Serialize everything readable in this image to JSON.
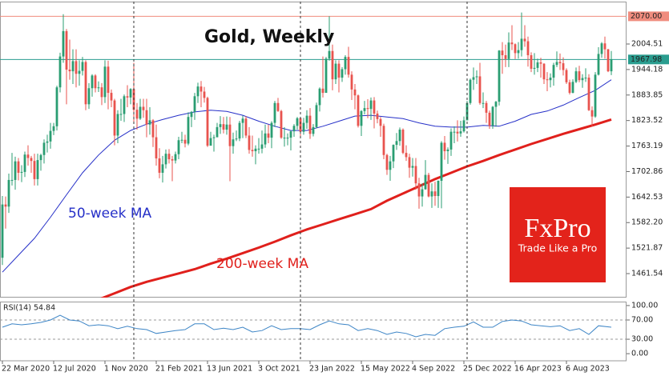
{
  "chart_data": [
    {
      "type": "candlestick",
      "title": "Gold, Weekly",
      "up_color": "#2a9d72",
      "down_color": "#e8534e",
      "xlim": [
        -0.75,
        194.75
      ],
      "xticks": [
        {
          "value": 0,
          "label": "22 Mar 2020"
        },
        {
          "value": 16,
          "label": "12 Jul 2020"
        },
        {
          "value": 32,
          "label": "1 Nov 2020"
        },
        {
          "value": 48,
          "label": "21 Feb 2021"
        },
        {
          "value": 64,
          "label": "13 Jun 2021"
        },
        {
          "value": 80,
          "label": "3 Oct 2021"
        },
        {
          "value": 96,
          "label": "23 Jan 2022"
        },
        {
          "value": 112,
          "label": "15 May 2022"
        },
        {
          "value": 128,
          "label": "4 Sep 2022"
        },
        {
          "value": 144,
          "label": "25 Dec 2022"
        },
        {
          "value": 160,
          "label": "16 Apr 2023"
        },
        {
          "value": 176,
          "label": "6 Aug 2023"
        }
      ],
      "year_lines": [
        41,
        93,
        145
      ],
      "ylim": [
        1404.8,
        2104.8
      ],
      "yticks": [
        2004.51,
        1944.18,
        1883.85,
        1823.52,
        1763.19,
        1702.86,
        1642.53,
        {
          "value": 1582.2,
          "label": "1582.20"
        },
        1521.87,
        1461.54
      ],
      "hlines": [
        {
          "y": {
            "value": 2070,
            "label": "2070.00"
          },
          "color": "#f08c7e"
        },
        {
          "y": 1967.98,
          "color": "#2a9d8f"
        }
      ],
      "open": [
        1499,
        1625,
        1620,
        1683,
        1683,
        1727,
        1700,
        1702,
        1743,
        1735,
        1728,
        1685,
        1730,
        1742,
        1771,
        1774,
        1799,
        1810,
        1902,
        1975,
        2035,
        1944,
        1940,
        1964,
        1934,
        1941,
        1962,
        1862,
        1900,
        1930,
        1900,
        1902,
        1879,
        1951,
        1889,
        1871,
        1788,
        1839,
        1839,
        1881,
        1878,
        1898,
        1849,
        1828,
        1856,
        1848,
        1814,
        1824,
        1784,
        1734,
        1700,
        1720,
        1745,
        1732,
        1729,
        1744,
        1777,
        1778,
        1769,
        1832,
        1844,
        1881,
        1904,
        1892,
        1877,
        1764,
        1782,
        1784,
        1808,
        1815,
        1802,
        1814,
        1763,
        1779,
        1781,
        1818,
        1828,
        1788,
        1754,
        1751,
        1757,
        1757,
        1767,
        1793,
        1783,
        1818,
        1865,
        1846,
        1783,
        1783,
        1783,
        1798,
        1811,
        1829,
        1797,
        1818,
        1835,
        1792,
        1808,
        1860,
        1899,
        1889,
        1970,
        1988,
        1921,
        1958,
        1925,
        1945,
        1974,
        1932,
        1897,
        1883,
        1811,
        1846,
        1853,
        1851,
        1871,
        1840,
        1827,
        1811,
        1742,
        1707,
        1727,
        1766,
        1775,
        1802,
        1747,
        1737,
        1712,
        1716,
        1675,
        1644,
        1661,
        1695,
        1644,
        1656,
        1645,
        1681,
        1771,
        1751,
        1755,
        1797,
        1797,
        1793,
        1798,
        1824,
        1865,
        1920,
        1926,
        1928,
        1865,
        1865,
        1842,
        1811,
        1856,
        1868,
        1989,
        1978,
        1969,
        2008,
        2004,
        1983,
        1990,
        2017,
        2011,
        1978,
        1946,
        1948,
        1961,
        1958,
        1921,
        1919,
        1925,
        1955,
        1962,
        1959,
        1943,
        1914,
        1889,
        1915,
        1940,
        1919,
        1924,
        1925,
        1848,
        1833,
        1932,
        1981,
        2006,
        1992,
        1940
      ],
      "high": [
        1645,
        1644,
        1698,
        1747,
        1738,
        1735,
        1718,
        1750,
        1765,
        1740,
        1745,
        1745,
        1745,
        1779,
        1790,
        1818,
        1818,
        1906,
        1984,
        2075,
        2040,
        2015,
        1992,
        1992,
        1966,
        1974,
        1966,
        1912,
        1933,
        1933,
        1916,
        1912,
        1966,
        1965,
        1897,
        1875,
        1848,
        1875,
        1885,
        1907,
        1900,
        1960,
        1865,
        1875,
        1875,
        1875,
        1855,
        1827,
        1814,
        1758,
        1740,
        1755,
        1756,
        1740,
        1750,
        1785,
        1797,
        1790,
        1843,
        1846,
        1889,
        1913,
        1917,
        1903,
        1880,
        1797,
        1790,
        1818,
        1834,
        1832,
        1833,
        1832,
        1795,
        1800,
        1823,
        1835,
        1834,
        1808,
        1788,
        1765,
        1782,
        1800,
        1814,
        1814,
        1822,
        1870,
        1877,
        1849,
        1808,
        1793,
        1800,
        1815,
        1832,
        1831,
        1830,
        1848,
        1853,
        1815,
        1866,
        1902,
        1975,
        1974,
        2070,
        2003,
        1966,
        1966,
        1950,
        1978,
        1998,
        1940,
        1910,
        1885,
        1848,
        1870,
        1874,
        1878,
        1879,
        1847,
        1832,
        1816,
        1745,
        1740,
        1767,
        1794,
        1807,
        1805,
        1765,
        1745,
        1735,
        1735,
        1688,
        1675,
        1730,
        1700,
        1675,
        1679,
        1682,
        1775,
        1787,
        1760,
        1805,
        1810,
        1824,
        1823,
        1833,
        1870,
        1923,
        1949,
        1942,
        1960,
        1890,
        1870,
        1847,
        1858,
        1870,
        1990,
        2009,
        2003,
        2032,
        2049,
        2006,
        2009,
        2079,
        2049,
        2022,
        1985,
        1983,
        1970,
        1972,
        1959,
        1938,
        1935,
        1960,
        1987,
        1982,
        1973,
        1947,
        1920,
        1921,
        1949,
        1953,
        1933,
        1947,
        1933,
        1857,
        1938,
        1997,
        2009,
        2022,
        1993,
        1988
      ],
      "low": [
        1482,
        1568,
        1605,
        1670,
        1660,
        1682,
        1678,
        1690,
        1717,
        1700,
        1670,
        1670,
        1705,
        1722,
        1748,
        1757,
        1789,
        1800,
        1890,
        1960,
        1862,
        1920,
        1910,
        1902,
        1906,
        1930,
        1848,
        1851,
        1880,
        1890,
        1891,
        1860,
        1865,
        1850,
        1855,
        1765,
        1770,
        1823,
        1820,
        1855,
        1862,
        1817,
        1802,
        1825,
        1830,
        1784,
        1790,
        1761,
        1717,
        1687,
        1677,
        1710,
        1722,
        1680,
        1722,
        1732,
        1770,
        1760,
        1765,
        1808,
        1825,
        1865,
        1855,
        1866,
        1761,
        1767,
        1750,
        1784,
        1792,
        1793,
        1790,
        1680,
        1745,
        1775,
        1775,
        1782,
        1782,
        1745,
        1738,
        1720,
        1745,
        1746,
        1759,
        1770,
        1758,
        1808,
        1844,
        1780,
        1762,
        1765,
        1753,
        1785,
        1802,
        1782,
        1790,
        1804,
        1780,
        1786,
        1805,
        1845,
        1878,
        1890,
        1965,
        1895,
        1910,
        1890,
        1915,
        1932,
        1925,
        1872,
        1850,
        1807,
        1787,
        1838,
        1829,
        1825,
        1805,
        1817,
        1785,
        1732,
        1695,
        1681,
        1711,
        1754,
        1764,
        1744,
        1728,
        1688,
        1691,
        1660,
        1615,
        1620,
        1660,
        1642,
        1617,
        1622,
        1617,
        1616,
        1731,
        1721,
        1740,
        1770,
        1774,
        1785,
        1795,
        1824,
        1861,
        1896,
        1910,
        1861,
        1853,
        1818,
        1804,
        1804,
        1809,
        1859,
        1934,
        1950,
        1950,
        1990,
        1969,
        1970,
        1975,
        1998,
        1951,
        1938,
        1932,
        1938,
        1925,
        1910,
        1893,
        1902,
        1906,
        1950,
        1943,
        1930,
        1910,
        1885,
        1888,
        1912,
        1914,
        1901,
        1915,
        1846,
        1810,
        1830,
        1930,
        1972,
        1970,
        1938,
        1931
      ],
      "close": [
        1625,
        1620,
        1683,
        1683,
        1727,
        1700,
        1702,
        1743,
        1735,
        1728,
        1685,
        1730,
        1742,
        1771,
        1774,
        1799,
        1810,
        1902,
        1975,
        2035,
        1944,
        1940,
        1964,
        1934,
        1941,
        1962,
        1862,
        1900,
        1930,
        1900,
        1902,
        1879,
        1951,
        1889,
        1871,
        1788,
        1839,
        1839,
        1881,
        1878,
        1898,
        1849,
        1828,
        1856,
        1848,
        1814,
        1824,
        1784,
        1734,
        1700,
        1720,
        1745,
        1732,
        1729,
        1744,
        1777,
        1778,
        1769,
        1832,
        1844,
        1881,
        1904,
        1892,
        1877,
        1764,
        1782,
        1784,
        1808,
        1815,
        1802,
        1814,
        1763,
        1779,
        1781,
        1818,
        1828,
        1788,
        1754,
        1751,
        1757,
        1757,
        1767,
        1793,
        1783,
        1818,
        1865,
        1846,
        1783,
        1783,
        1783,
        1798,
        1811,
        1829,
        1797,
        1818,
        1835,
        1792,
        1808,
        1860,
        1899,
        1889,
        1970,
        1988,
        1921,
        1958,
        1925,
        1945,
        1974,
        1932,
        1897,
        1883,
        1811,
        1846,
        1853,
        1851,
        1871,
        1840,
        1827,
        1811,
        1742,
        1707,
        1727,
        1766,
        1775,
        1802,
        1747,
        1737,
        1712,
        1716,
        1675,
        1644,
        1661,
        1695,
        1644,
        1656,
        1645,
        1681,
        1771,
        1751,
        1755,
        1797,
        1797,
        1793,
        1798,
        1824,
        1865,
        1920,
        1926,
        1928,
        1865,
        1865,
        1842,
        1811,
        1856,
        1868,
        1989,
        1978,
        1969,
        2008,
        2004,
        1983,
        1990,
        2017,
        2011,
        1978,
        1946,
        1948,
        1961,
        1958,
        1921,
        1919,
        1925,
        1955,
        1962,
        1959,
        1943,
        1914,
        1889,
        1915,
        1940,
        1919,
        1924,
        1925,
        1848,
        1833,
        1932,
        1981,
        2006,
        1992,
        1940,
        1968
      ],
      "lines": [
        {
          "name": "50-week MA",
          "color": "#2630c8",
          "x": [
            0,
            5,
            10,
            15,
            20,
            25,
            30,
            35,
            40,
            45,
            50,
            55,
            60,
            65,
            70,
            75,
            80,
            85,
            90,
            95,
            100,
            105,
            110,
            115,
            120,
            125,
            130,
            135,
            140,
            145,
            150,
            155,
            160,
            165,
            170,
            175,
            180,
            185,
            190
          ],
          "values": [
            1465,
            1505,
            1545,
            1595,
            1648,
            1700,
            1742,
            1777,
            1800,
            1815,
            1826,
            1836,
            1844,
            1848,
            1845,
            1836,
            1822,
            1810,
            1800,
            1800,
            1810,
            1822,
            1834,
            1836,
            1832,
            1828,
            1818,
            1810,
            1808,
            1808,
            1812,
            1810,
            1822,
            1838,
            1846,
            1860,
            1878,
            1895,
            1920
          ]
        },
        {
          "name": "200-week MA",
          "color": "#e0201c",
          "x": [
            25,
            30,
            35,
            40,
            45,
            50,
            55,
            60,
            65,
            70,
            75,
            80,
            85,
            90,
            95,
            100,
            105,
            110,
            115,
            120,
            125,
            130,
            135,
            140,
            145,
            150,
            155,
            160,
            165,
            170,
            175,
            180,
            185,
            190
          ],
          "values": [
            1390,
            1400,
            1415,
            1430,
            1442,
            1452,
            1462,
            1472,
            1485,
            1497,
            1510,
            1523,
            1537,
            1552,
            1566,
            1578,
            1590,
            1602,
            1614,
            1634,
            1651,
            1668,
            1685,
            1700,
            1715,
            1728,
            1742,
            1755,
            1768,
            1780,
            1792,
            1803,
            1814,
            1826
          ]
        }
      ]
    },
    {
      "type": "line",
      "label": "RSI(14) 54.84",
      "color": "#3d85c6",
      "ylim": [
        -14.8,
        108.2
      ],
      "yticks": [
        {
          "value": 100,
          "label": "100.00"
        },
        {
          "value": 70,
          "label": "70.00"
        },
        {
          "value": 30,
          "label": "30.00"
        },
        {
          "value": 0,
          "label": "0.00"
        }
      ],
      "levels": [
        70,
        30
      ],
      "x": [
        0,
        3,
        6,
        9,
        12,
        15,
        18,
        21,
        24,
        27,
        30,
        33,
        36,
        39,
        42,
        45,
        48,
        51,
        54,
        57,
        60,
        63,
        66,
        69,
        72,
        75,
        78,
        81,
        84,
        87,
        90,
        93,
        96,
        99,
        102,
        105,
        108,
        111,
        114,
        117,
        120,
        123,
        126,
        129,
        132,
        135,
        138,
        141,
        144,
        147,
        150,
        153,
        156,
        159,
        162,
        165,
        168,
        171,
        174,
        177,
        180,
        183,
        186,
        190
      ],
      "values": [
        55,
        62,
        60,
        62,
        65,
        70,
        80,
        70,
        68,
        58,
        60,
        58,
        52,
        57,
        52,
        50,
        42,
        45,
        48,
        50,
        62,
        62,
        50,
        53,
        50,
        55,
        45,
        48,
        58,
        50,
        52,
        52,
        50,
        60,
        68,
        62,
        60,
        48,
        52,
        48,
        40,
        45,
        42,
        35,
        40,
        38,
        52,
        55,
        57,
        66,
        55,
        55,
        67,
        70,
        68,
        60,
        58,
        56,
        58,
        48,
        52,
        40,
        58,
        55
      ]
    }
  ],
  "logo": {
    "brand": "FxPro",
    "tagline": "Trade Like a Pro"
  }
}
